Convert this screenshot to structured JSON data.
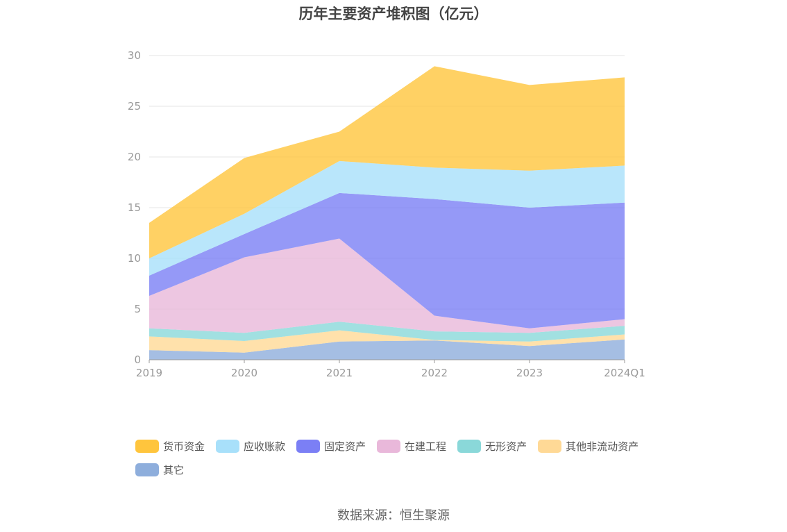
{
  "chart_data": {
    "type": "area",
    "stacked": true,
    "title": "历年主要资产堆积图（亿元）",
    "categories": [
      "2019",
      "2020",
      "2021",
      "2022",
      "2023",
      "2024Q1"
    ],
    "ylim": [
      0,
      30
    ],
    "yticks": [
      0,
      5,
      10,
      15,
      20,
      25,
      30
    ],
    "grid": true,
    "legend_position": "bottom",
    "series": [
      {
        "name": "其它",
        "color": "#8eaedc",
        "values": [
          0.95,
          0.7,
          1.8,
          1.9,
          1.35,
          2.0
        ]
      },
      {
        "name": "其他非流动资产",
        "color": "#ffd996",
        "values": [
          1.35,
          1.15,
          1.1,
          0.05,
          0.45,
          0.5
        ]
      },
      {
        "name": "无形资产",
        "color": "#8ad8d9",
        "values": [
          0.8,
          0.8,
          0.85,
          0.85,
          0.85,
          0.85
        ]
      },
      {
        "name": "在建工程",
        "color": "#e9b8da",
        "values": [
          3.2,
          7.45,
          8.2,
          1.55,
          0.45,
          0.65
        ]
      },
      {
        "name": "固定资产",
        "color": "#7b7ff5",
        "values": [
          2.0,
          2.3,
          4.5,
          11.5,
          11.9,
          11.5
        ]
      },
      {
        "name": "应收账款",
        "color": "#a8e0fa",
        "values": [
          1.7,
          2.0,
          3.15,
          3.1,
          3.65,
          3.65
        ]
      },
      {
        "name": "货币资金",
        "color": "#ffc53d",
        "values": [
          3.5,
          5.5,
          2.9,
          10.0,
          8.45,
          8.7
        ]
      }
    ]
  },
  "legend": {
    "items": [
      {
        "label": "货币资金",
        "color": "#ffc53d"
      },
      {
        "label": "应收账款",
        "color": "#a8e0fa"
      },
      {
        "label": "固定资产",
        "color": "#7b7ff5"
      },
      {
        "label": "在建工程",
        "color": "#e9b8da"
      },
      {
        "label": "无形资产",
        "color": "#8ad8d9"
      },
      {
        "label": "其他非流动资产",
        "color": "#ffd996"
      },
      {
        "label": "其它",
        "color": "#8eaedc"
      }
    ]
  },
  "footer": {
    "source": "数据来源：恒生聚源"
  }
}
